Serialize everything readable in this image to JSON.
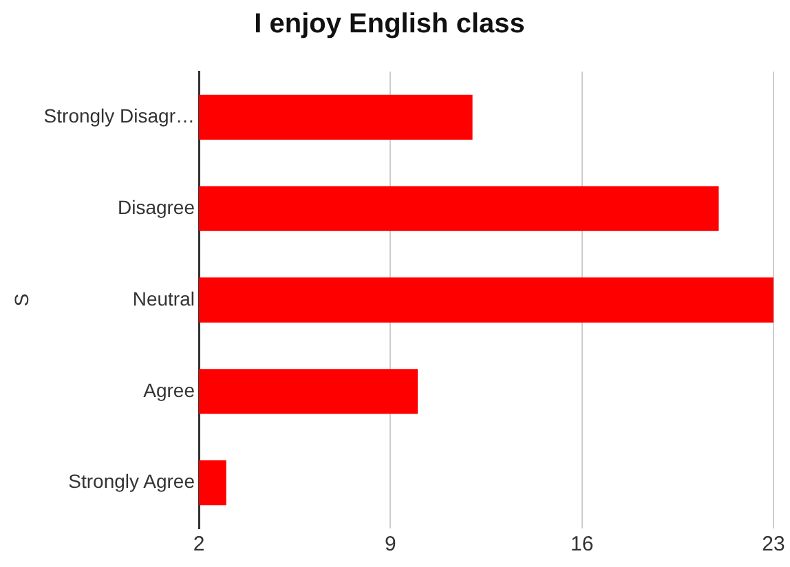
{
  "chart_data": {
    "type": "bar",
    "orientation": "horizontal",
    "title": "I enjoy English class",
    "ylabel": "S",
    "categories": [
      "Strongly Disagr…",
      "Disagree",
      "Neutral",
      "Agree",
      "Strongly Agree"
    ],
    "values": [
      12,
      21,
      23,
      10,
      3
    ],
    "color": "#ff0000",
    "xlim": [
      2,
      23
    ],
    "xticks": [
      2,
      9,
      16,
      23
    ],
    "grid": "x"
  }
}
